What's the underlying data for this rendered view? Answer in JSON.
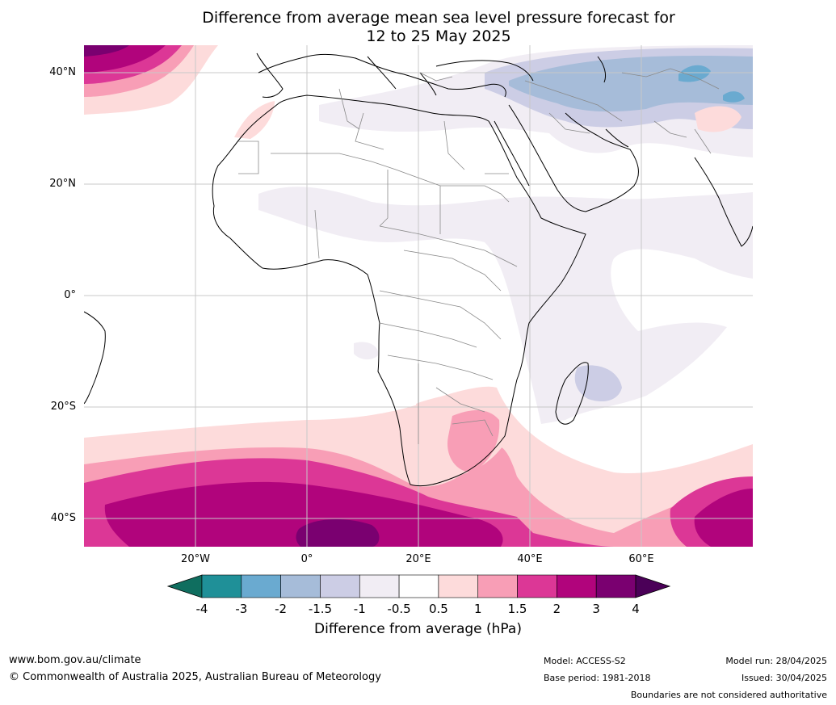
{
  "title": {
    "line1": "Difference from average mean sea level pressure forecast for",
    "line2": "12 to 25 May 2025"
  },
  "map": {
    "lat_labels": [
      "40°N",
      "20°N",
      "0°",
      "20°S",
      "40°S"
    ],
    "lon_labels": [
      "20°W",
      "0°",
      "20°E",
      "40°E",
      "60°E"
    ],
    "extent": {
      "lon": [
        -40,
        80
      ],
      "lat": [
        -45,
        45
      ]
    }
  },
  "colorbar": {
    "ticks": [
      "-4",
      "-3",
      "-2",
      "-1.5",
      "-1",
      "-0.5",
      "0.5",
      "1",
      "1.5",
      "2",
      "3",
      "4"
    ],
    "colors": [
      "#0f6e5f",
      "#1f9098",
      "#6aaad0",
      "#a6bcd9",
      "#cccde5",
      "#f1edf4",
      "#ffffff",
      "#fddbdb",
      "#f89eb6",
      "#dc3796",
      "#b1047c",
      "#7a0070",
      "#4b0058"
    ],
    "label": "Difference from average (hPa)"
  },
  "footer": {
    "website": "www.bom.gov.au/climate",
    "copyright": "© Commonwealth of Australia 2025, Australian Bureau of Meteorology",
    "model": "Model: ACCESS-S2",
    "base_period": "Base period: 1981-2018",
    "model_run": "Model run: 28/04/2025",
    "issued": "Issued: 30/04/2025",
    "disclaimer": "Boundaries are not considered authoritative"
  }
}
